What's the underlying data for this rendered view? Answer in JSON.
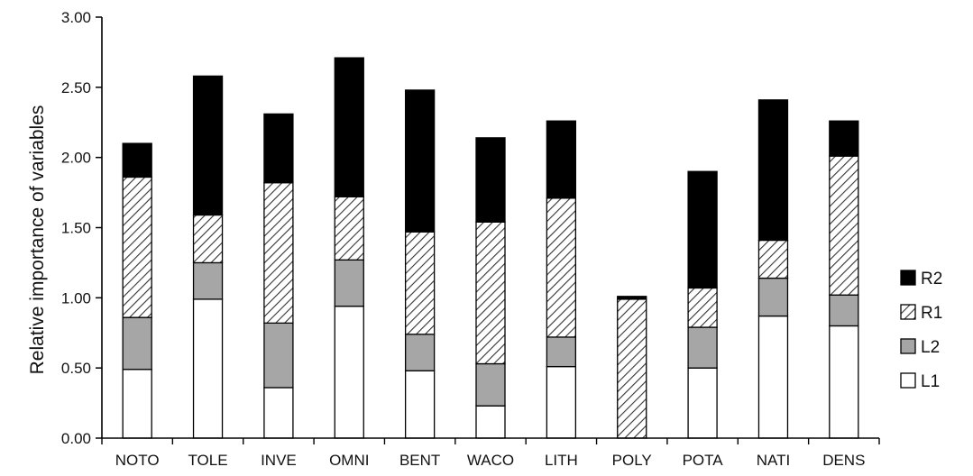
{
  "chart_data": {
    "type": "bar",
    "stacked": true,
    "title": "",
    "xlabel": "",
    "ylabel": "Relative importance of variables",
    "ylim": [
      0,
      3.0
    ],
    "yticks": [
      "0.00",
      "0.50",
      "1.00",
      "1.50",
      "2.00",
      "2.50",
      "3.00"
    ],
    "grid": false,
    "legend_position": "right",
    "categories": [
      "NOTO",
      "TOLE",
      "INVE",
      "OMNI",
      "BENT",
      "WACO",
      "LITH",
      "POLY",
      "POTA",
      "NATI",
      "DENS"
    ],
    "series": [
      {
        "name": "L1",
        "pattern": "white",
        "values": [
          0.49,
          0.99,
          0.36,
          0.94,
          0.48,
          0.23,
          0.51,
          0.0,
          0.5,
          0.87,
          0.8
        ]
      },
      {
        "name": "L2",
        "pattern": "gray",
        "values": [
          0.37,
          0.26,
          0.46,
          0.33,
          0.26,
          0.3,
          0.21,
          0.0,
          0.29,
          0.27,
          0.22
        ]
      },
      {
        "name": "R1",
        "pattern": "hatched",
        "values": [
          1.0,
          0.34,
          1.0,
          0.45,
          0.73,
          1.01,
          0.99,
          0.99,
          0.28,
          0.27,
          0.99
        ]
      },
      {
        "name": "R2",
        "pattern": "black",
        "values": [
          0.24,
          0.99,
          0.49,
          0.99,
          1.01,
          0.6,
          0.55,
          0.02,
          0.83,
          1.0,
          0.25
        ]
      }
    ],
    "legend_order": [
      "R2",
      "R1",
      "L2",
      "L1"
    ],
    "colors": {
      "white": "#ffffff",
      "gray": "#a6a6a6",
      "black": "#000000",
      "hatch_line": "#333333"
    }
  }
}
